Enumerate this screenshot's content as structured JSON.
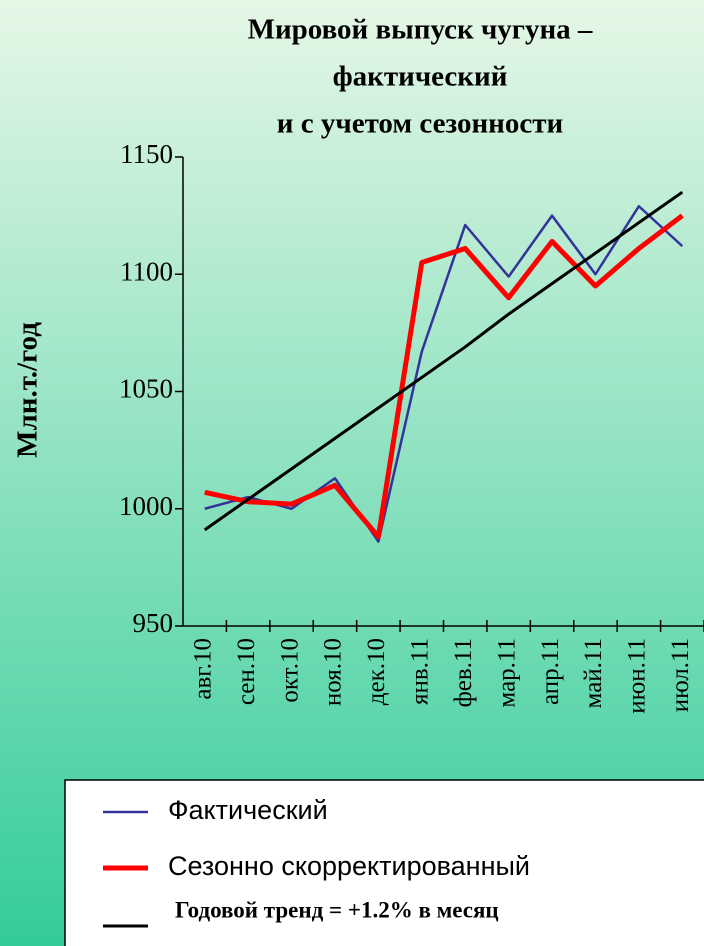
{
  "chart_data": {
    "type": "line",
    "title": [
      "Мировой выпуск чугуна –",
      "фактический",
      "и с учетом сезонности"
    ],
    "y_label": "Млн.т./год",
    "categories": [
      "авг.10",
      "сен.10",
      "окт.10",
      "ноя.10",
      "дек.10",
      "янв.11",
      "фев.11",
      "мар.11",
      "апр.11",
      "май.11",
      "июн.11",
      "июл.11"
    ],
    "series": [
      {
        "name": "Фактический",
        "color": "#333399",
        "values": [
          1000,
          1005,
          1000,
          1013,
          986,
          1067,
          1121,
          1099,
          1125,
          1100,
          1129,
          1112
        ]
      },
      {
        "name": "Сезонно скорректированный",
        "color": "#ff0000",
        "values": [
          1007,
          1003,
          1002,
          1010,
          988,
          1105,
          1111,
          1090,
          1114,
          1095,
          1111,
          1125
        ]
      },
      {
        "name": "Годовой тренд = +1.2% в месяц",
        "color": "#000000",
        "values": [
          991,
          1004,
          1017,
          1030,
          1043,
          1056,
          1069,
          1083,
          1096,
          1109,
          1122,
          1135
        ]
      }
    ],
    "ylim": [
      950,
      1150
    ],
    "yticks": [
      950,
      1000,
      1050,
      1100,
      1150
    ]
  }
}
